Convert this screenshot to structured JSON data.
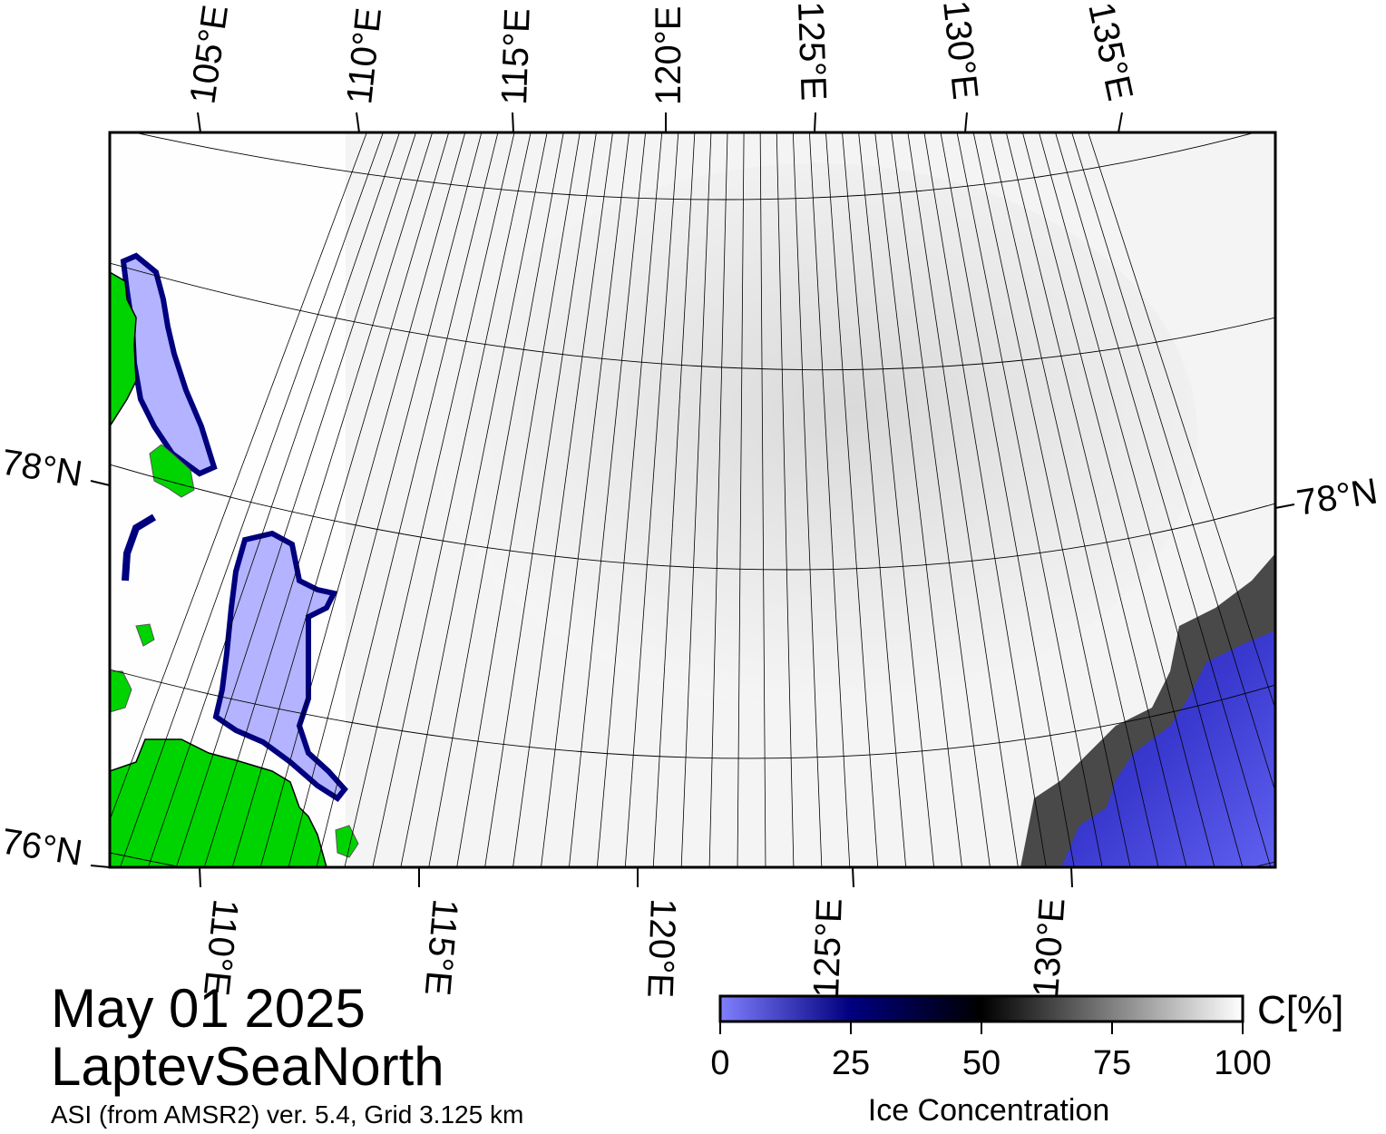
{
  "map": {
    "region_name": "LaptevSeaNorth",
    "date": "May 01 2025",
    "source": "ASI (from AMSR2) ver. 5.4,  Grid 3.125 km",
    "top_lon_labels": [
      "105°E",
      "110°E",
      "115°E",
      "120°E",
      "125°E",
      "130°E",
      "135°E"
    ],
    "bottom_lon_labels": [
      "110°E",
      "115°E",
      "120°E",
      "125°E",
      "130°E"
    ],
    "left_lat_labels": [
      "78°N",
      "76°N"
    ],
    "right_lat_labels": [
      "78°N"
    ],
    "colors": {
      "land": "#00d400",
      "open_water_low": "#7f7fff",
      "open_water_dark": "#00007f",
      "ice_full": "#ffffff",
      "coast_gray": "#808080"
    }
  },
  "colorbar": {
    "title": "Ice Concentration",
    "unit": "C[%]",
    "ticks": [
      "0",
      "25",
      "50",
      "75",
      "100"
    ],
    "range": [
      0,
      100
    ],
    "stops": [
      {
        "value": 0,
        "color": "#8080ff"
      },
      {
        "value": 25,
        "color": "#00007f"
      },
      {
        "value": 50,
        "color": "#000000"
      },
      {
        "value": 100,
        "color": "#ffffff"
      }
    ]
  }
}
